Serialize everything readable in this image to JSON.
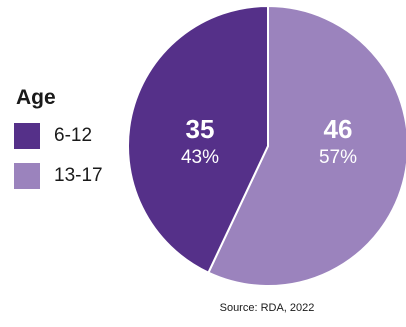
{
  "chart_data": {
    "type": "pie",
    "title": "",
    "legend_title": "Age",
    "legend_placement": "left",
    "start_angle_deg": 0,
    "direction": "clockwise",
    "slices": [
      {
        "label": "13-17",
        "count": "46",
        "percent": "57%",
        "value": 57,
        "color": "#9b83bd"
      },
      {
        "label": "6-12",
        "count": "35",
        "percent": "43%",
        "value": 43,
        "color": "#553089"
      }
    ],
    "source": "Source: RDA, 2022"
  }
}
